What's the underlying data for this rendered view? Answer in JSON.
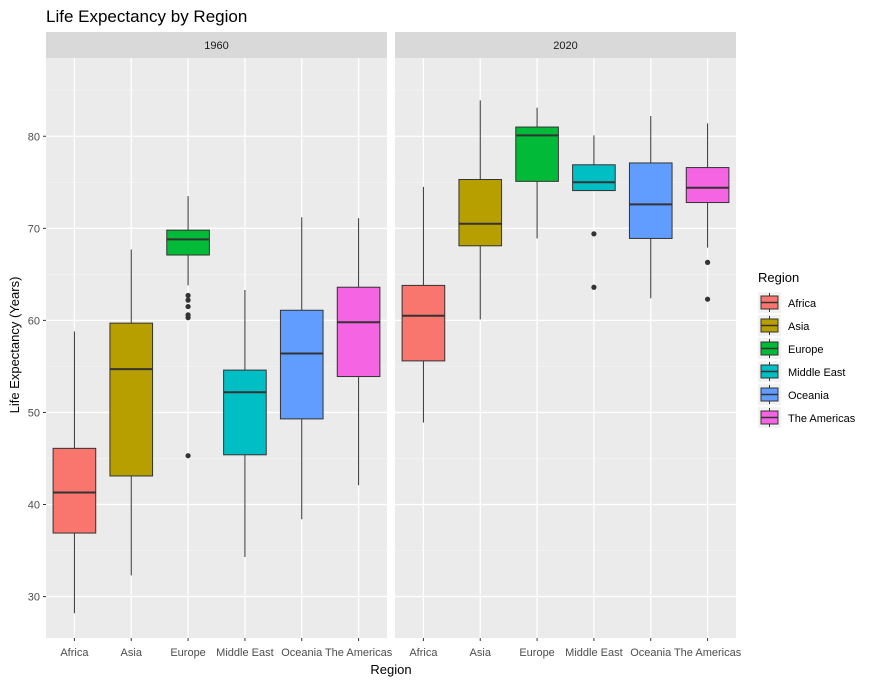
{
  "chart_data": {
    "type": "boxplot",
    "title": "Life Expectancy by Region",
    "xlabel": "Region",
    "ylabel": "Life Expectancy (Years)",
    "ylim": [
      25.5,
      88.5
    ],
    "y_ticks": [
      30,
      40,
      50,
      60,
      70,
      80
    ],
    "categories": [
      "Africa",
      "Asia",
      "Europe",
      "Middle East",
      "Oceania",
      "The Americas"
    ],
    "grid": true,
    "legend": {
      "title": "Region",
      "placement": "right",
      "entries": [
        "Africa",
        "Asia",
        "Europe",
        "Middle East",
        "Oceania",
        "The Americas"
      ]
    },
    "colors": {
      "Africa": "#F8766D",
      "Asia": "#B79F00",
      "Europe": "#00BA38",
      "Middle East": "#00BFC4",
      "Oceania": "#619CFF",
      "The Americas": "#F564E3"
    },
    "panels": [
      {
        "label": "1960",
        "boxes": [
          {
            "category": "Africa",
            "whisker_low": 28.2,
            "q1": 36.9,
            "median": 41.3,
            "q3": 46.1,
            "whisker_high": 58.8,
            "outliers": []
          },
          {
            "category": "Asia",
            "whisker_low": 32.3,
            "q1": 43.1,
            "median": 54.7,
            "q3": 59.7,
            "whisker_high": 67.7,
            "outliers": []
          },
          {
            "category": "Europe",
            "whisker_low": 63.8,
            "q1": 67.1,
            "median": 68.8,
            "q3": 69.8,
            "whisker_high": 73.5,
            "outliers": [
              62.7,
              62.2,
              61.5,
              60.6,
              60.3,
              45.3
            ]
          },
          {
            "category": "Middle East",
            "whisker_low": 34.3,
            "q1": 45.4,
            "median": 52.2,
            "q3": 54.6,
            "whisker_high": 63.3,
            "outliers": []
          },
          {
            "category": "Oceania",
            "whisker_low": 38.4,
            "q1": 49.3,
            "median": 56.4,
            "q3": 61.1,
            "whisker_high": 71.2,
            "outliers": []
          },
          {
            "category": "The Americas",
            "whisker_low": 42.1,
            "q1": 53.9,
            "median": 59.8,
            "q3": 63.6,
            "whisker_high": 71.1,
            "outliers": []
          }
        ]
      },
      {
        "label": "2020",
        "boxes": [
          {
            "category": "Africa",
            "whisker_low": 48.9,
            "q1": 55.6,
            "median": 60.5,
            "q3": 63.8,
            "whisker_high": 74.5,
            "outliers": []
          },
          {
            "category": "Asia",
            "whisker_low": 60.1,
            "q1": 68.1,
            "median": 70.5,
            "q3": 75.3,
            "whisker_high": 83.9,
            "outliers": []
          },
          {
            "category": "Europe",
            "whisker_low": 68.9,
            "q1": 75.1,
            "median": 80.1,
            "q3": 81.0,
            "whisker_high": 83.1,
            "outliers": []
          },
          {
            "category": "Middle East",
            "whisker_low": 74.1,
            "q1": 74.1,
            "median": 75.0,
            "q3": 76.9,
            "whisker_high": 80.1,
            "outliers": [
              69.4,
              63.6
            ]
          },
          {
            "category": "Oceania",
            "whisker_low": 62.4,
            "q1": 68.9,
            "median": 72.6,
            "q3": 77.1,
            "whisker_high": 82.2,
            "outliers": []
          },
          {
            "category": "The Americas",
            "whisker_low": 67.9,
            "q1": 72.8,
            "median": 74.4,
            "q3": 76.6,
            "whisker_high": 81.4,
            "outliers": [
              66.3,
              62.3
            ]
          }
        ]
      }
    ]
  }
}
